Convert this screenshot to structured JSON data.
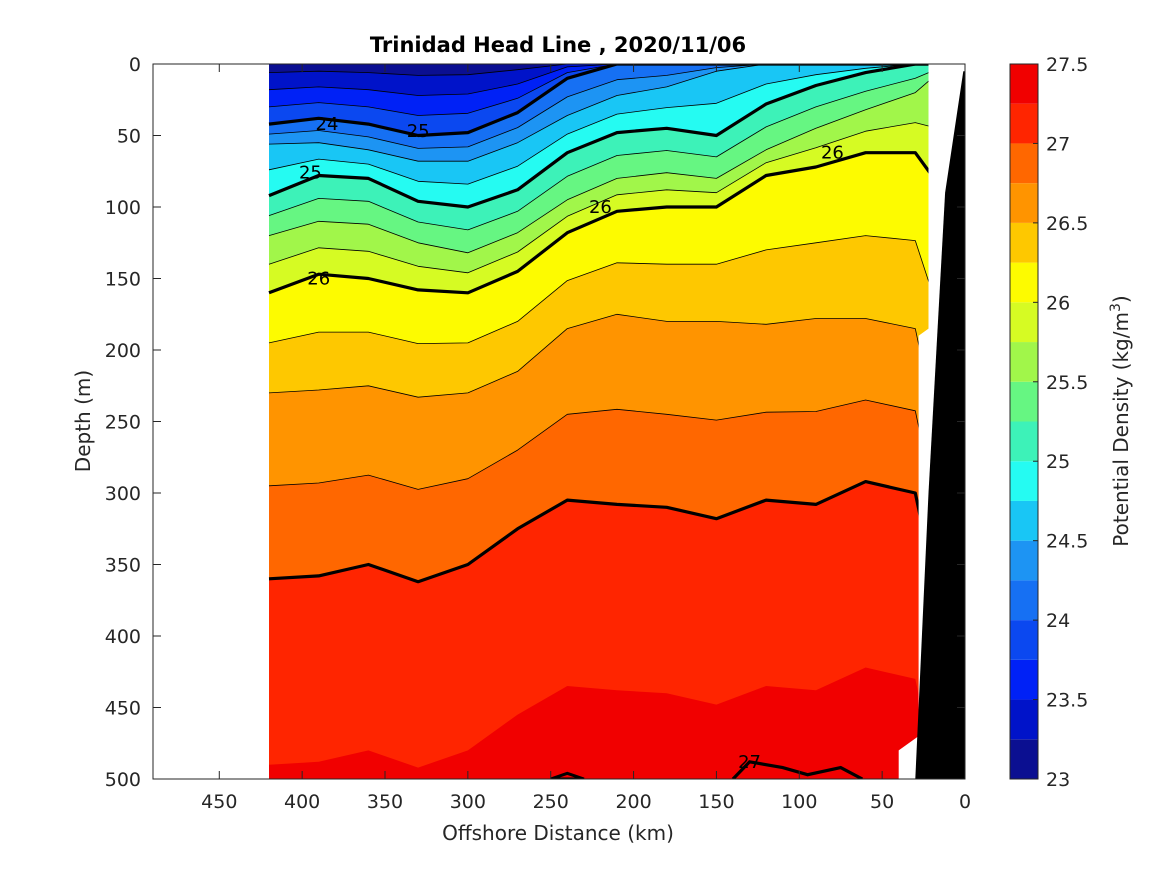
{
  "chart_data": {
    "type": "heatmap",
    "subtype": "filled-contour-section",
    "title": "Trinidad Head Line , 2020/11/06",
    "xlabel": "Offshore Distance (km)",
    "ylabel": "Depth (m)",
    "xlim": [
      490,
      0
    ],
    "ylim": [
      0,
      500
    ],
    "x_reversed": true,
    "y_reversed": true,
    "xticks": [
      450,
      400,
      350,
      300,
      250,
      200,
      150,
      100,
      50,
      0
    ],
    "yticks": [
      0,
      50,
      100,
      150,
      200,
      250,
      300,
      350,
      400,
      450,
      500
    ],
    "colorbar": {
      "label": "Potential Density (kg/m",
      "label_superscript": "3",
      "label_suffix": ")",
      "range": [
        23,
        27.5
      ],
      "ticks": [
        "23",
        "23.5",
        "24",
        "24.5",
        "25",
        "25.5",
        "26",
        "26.5",
        "27",
        "27.5"
      ],
      "levels": [
        23,
        23.25,
        23.5,
        23.75,
        24,
        24.25,
        24.5,
        24.75,
        25,
        25.25,
        25.5,
        25.75,
        26,
        26.25,
        26.5,
        26.75,
        27,
        27.25,
        27.5
      ],
      "colors": [
        "#0b0f91",
        "#0013c9",
        "#0021f6",
        "#0b48f0",
        "#1670f3",
        "#1d94f3",
        "#19c6f5",
        "#25fbf2",
        "#3df2b8",
        "#66f682",
        "#a1f64a",
        "#d6fb23",
        "#fdfb00",
        "#fec800",
        "#ff9400",
        "#ff6700",
        "#ff2500",
        "#f10000",
        "#b30000"
      ]
    },
    "contour_labels": [
      "24",
      "25",
      "25",
      "26",
      "26",
      "26",
      "27"
    ],
    "isopycnals_depth_m": {
      "distance_km": [
        420,
        390,
        360,
        330,
        300,
        270,
        240,
        210,
        180,
        150,
        120,
        90,
        60,
        30,
        20
      ],
      "24.0": [
        42,
        38,
        42,
        50,
        48,
        34,
        10,
        0,
        0,
        0,
        0,
        0,
        0,
        0,
        0
      ],
      "24.5": [
        56,
        55,
        60,
        68,
        68,
        55,
        36,
        22,
        16,
        5,
        0,
        0,
        0,
        0,
        0
      ],
      "25.0": [
        92,
        78,
        80,
        96,
        100,
        88,
        62,
        48,
        45,
        50,
        28,
        15,
        6,
        0,
        0
      ],
      "25.5": [
        120,
        110,
        112,
        125,
        132,
        118,
        95,
        80,
        76,
        80,
        60,
        45,
        32,
        20,
        10
      ],
      "26.0": [
        160,
        147,
        150,
        158,
        160,
        145,
        118,
        103,
        100,
        100,
        78,
        72,
        62,
        62,
        78
      ],
      "26.5": [
        230,
        228,
        225,
        233,
        230,
        215,
        185,
        175,
        180,
        180,
        182,
        178,
        178,
        185,
        240
      ],
      "27.0": [
        360,
        358,
        350,
        362,
        350,
        325,
        305,
        308,
        310,
        318,
        305,
        308,
        292,
        300,
        355
      ]
    },
    "grid": false,
    "colorbar_position": "right"
  }
}
